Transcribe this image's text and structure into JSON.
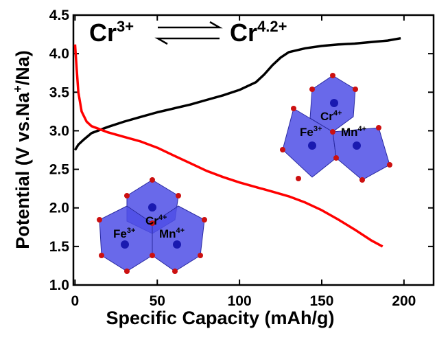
{
  "chart_data": {
    "type": "line",
    "x_label": "Specific Capacity (mAh/g)",
    "y_label": {
      "text": "Potential (V vs.Na",
      "sup": "+",
      "tail": "/Na)"
    },
    "xlim": [
      -1,
      218
    ],
    "xticks": [
      0,
      50,
      100,
      150,
      200
    ],
    "ylim": [
      1.0,
      4.5
    ],
    "yticks": [
      {
        "value": 1.0,
        "label": "1.0"
      },
      1.5,
      {
        "value": 2.0,
        "label": "2.0"
      },
      2.5,
      {
        "value": 3.0,
        "label": "3.0"
      },
      3.5,
      {
        "value": 4.0,
        "label": "4.0"
      },
      4.5
    ],
    "series": [
      {
        "color": "#000000",
        "x": [
          0,
          2,
          5,
          10,
          20,
          30,
          40,
          50,
          60,
          70,
          80,
          90,
          100,
          110,
          115,
          120,
          125,
          130,
          140,
          150,
          160,
          170,
          180,
          190,
          198
        ],
        "values": [
          2.75,
          2.82,
          2.88,
          2.97,
          3.05,
          3.12,
          3.18,
          3.24,
          3.29,
          3.34,
          3.4,
          3.46,
          3.53,
          3.63,
          3.73,
          3.85,
          3.95,
          4.02,
          4.07,
          4.1,
          4.12,
          4.13,
          4.15,
          4.17,
          4.2
        ]
      },
      {
        "color": "#ff0000",
        "x": [
          0,
          1,
          2,
          4,
          7,
          10,
          15,
          20,
          30,
          40,
          50,
          60,
          70,
          80,
          90,
          100,
          110,
          120,
          130,
          140,
          150,
          160,
          170,
          180,
          187
        ],
        "values": [
          4.12,
          3.8,
          3.5,
          3.25,
          3.12,
          3.06,
          3.02,
          2.98,
          2.92,
          2.86,
          2.78,
          2.68,
          2.58,
          2.48,
          2.4,
          2.33,
          2.27,
          2.21,
          2.15,
          2.07,
          1.97,
          1.85,
          1.72,
          1.58,
          1.5
        ]
      }
    ],
    "reaction": [
      {
        "text": "Cr",
        "sup": "3+"
      },
      {
        "text": "Cr",
        "sup": "4.2+"
      }
    ],
    "insets": [
      [
        {
          "text": "Cr",
          "sup": "4+"
        },
        {
          "text": "Fe",
          "sup": "3+"
        },
        {
          "text": "Mn",
          "sup": "4+"
        }
      ],
      [
        {
          "text": "Cr",
          "sup": "4+"
        },
        {
          "text": "Fe",
          "sup": "3+"
        },
        {
          "text": "Mn",
          "sup": "4+"
        }
      ]
    ]
  }
}
